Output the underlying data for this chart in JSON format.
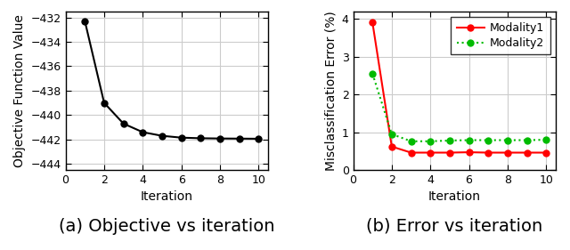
{
  "left_x": [
    1,
    2,
    3,
    4,
    5,
    6,
    7,
    8,
    9,
    10
  ],
  "left_y": [
    -432.3,
    -439.0,
    -440.7,
    -441.4,
    -441.7,
    -441.85,
    -441.9,
    -441.92,
    -441.93,
    -441.94
  ],
  "left_xlabel": "Iteration",
  "left_ylabel": "Objective Function Value",
  "left_ylim": [
    -444.5,
    -431.5
  ],
  "left_yticks": [
    -432,
    -434,
    -436,
    -438,
    -440,
    -442,
    -444
  ],
  "left_xlim": [
    0,
    10.5
  ],
  "left_xticks": [
    0,
    2,
    4,
    6,
    8,
    10
  ],
  "left_caption": "(a) Objective vs iteration",
  "right_x": [
    1,
    2,
    3,
    4,
    5,
    6,
    7,
    8,
    9,
    10
  ],
  "modality1_y": [
    3.9,
    0.62,
    0.46,
    0.46,
    0.46,
    0.47,
    0.46,
    0.46,
    0.46,
    0.46
  ],
  "modality2_y": [
    2.55,
    0.95,
    0.76,
    0.76,
    0.78,
    0.79,
    0.79,
    0.79,
    0.79,
    0.8
  ],
  "right_xlabel": "Iteration",
  "right_ylabel": "Misclassification Error (%)",
  "right_ylim": [
    0,
    4.2
  ],
  "right_yticks": [
    0,
    1,
    2,
    3,
    4
  ],
  "right_xlim": [
    0,
    10.5
  ],
  "right_xticks": [
    0,
    2,
    4,
    6,
    8,
    10
  ],
  "right_caption": "(b) Error vs iteration",
  "modality1_color": "#ff0000",
  "modality2_color": "#00bb00",
  "modality1_label": "Modality1",
  "modality2_label": "Modality2",
  "bg_color": "#ffffff",
  "grid_color": "#cccccc",
  "caption_fontsize": 14,
  "axis_label_fontsize": 10,
  "tick_fontsize": 9,
  "legend_fontsize": 9,
  "line_width": 1.5,
  "marker_size": 5
}
